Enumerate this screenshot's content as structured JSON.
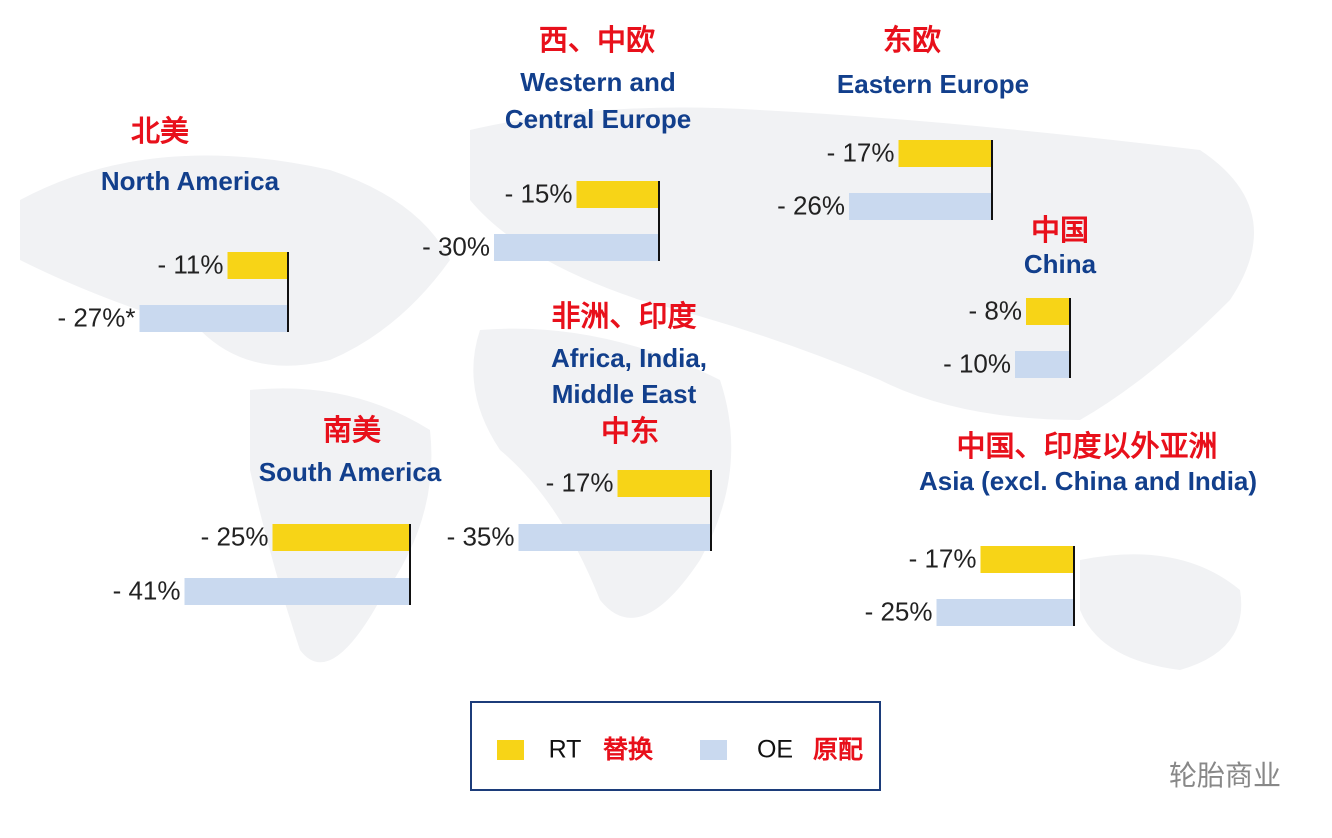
{
  "legend": [
    {
      "code": "RT",
      "label": "替换",
      "color": "#f7d417"
    },
    {
      "code": "OE",
      "label": "原配",
      "color": "#c9d9ef"
    }
  ],
  "watermark": "轮胎商业",
  "chart_data": [
    {
      "type": "bar",
      "title": [
        "北美"
      ],
      "subtitle": [
        "North America"
      ],
      "series": [
        {
          "values": [
            -11
          ],
          "value_labels": [
            "- 11%"
          ]
        },
        {
          "values": [
            -27
          ],
          "value_labels": [
            "- 27%*"
          ]
        }
      ]
    },
    {
      "type": "bar",
      "title": [
        "西、中欧"
      ],
      "subtitle": [
        "Western and",
        "Central Europe"
      ],
      "series": [
        {
          "values": [
            -15
          ],
          "value_labels": [
            "- 15%"
          ]
        },
        {
          "values": [
            -30
          ],
          "value_labels": [
            "- 30%"
          ]
        }
      ]
    },
    {
      "type": "bar",
      "title": [
        "东欧"
      ],
      "subtitle": [
        "Eastern Europe"
      ],
      "series": [
        {
          "values": [
            -17
          ],
          "value_labels": [
            "- 17%"
          ]
        },
        {
          "values": [
            -26
          ],
          "value_labels": [
            "- 26%"
          ]
        }
      ]
    },
    {
      "type": "bar",
      "title": [
        "中国"
      ],
      "subtitle": [
        "China"
      ],
      "series": [
        {
          "values": [
            -8
          ],
          "value_labels": [
            "- 8%"
          ]
        },
        {
          "values": [
            -10
          ],
          "value_labels": [
            "- 10%"
          ]
        }
      ]
    },
    {
      "type": "bar",
      "title": [
        "非洲、印度",
        "中东"
      ],
      "subtitle": [
        "Africa, India,",
        "Middle East"
      ],
      "series": [
        {
          "values": [
            -17
          ],
          "value_labels": [
            "- 17%"
          ]
        },
        {
          "values": [
            -35
          ],
          "value_labels": [
            "- 35%"
          ]
        }
      ]
    },
    {
      "type": "bar",
      "title": [
        "南美"
      ],
      "subtitle": [
        "South America"
      ],
      "series": [
        {
          "values": [
            -25
          ],
          "value_labels": [
            "- 25%"
          ]
        },
        {
          "values": [
            -41
          ],
          "value_labels": [
            "- 41%"
          ]
        }
      ]
    },
    {
      "type": "bar",
      "title": [
        "中国、印度以外亚洲"
      ],
      "subtitle": [
        "Asia (excl. China and India)"
      ],
      "series": [
        {
          "values": [
            -17
          ],
          "value_labels": [
            "- 17%"
          ]
        },
        {
          "values": [
            -25
          ],
          "value_labels": [
            "- 25%"
          ]
        }
      ]
    }
  ]
}
